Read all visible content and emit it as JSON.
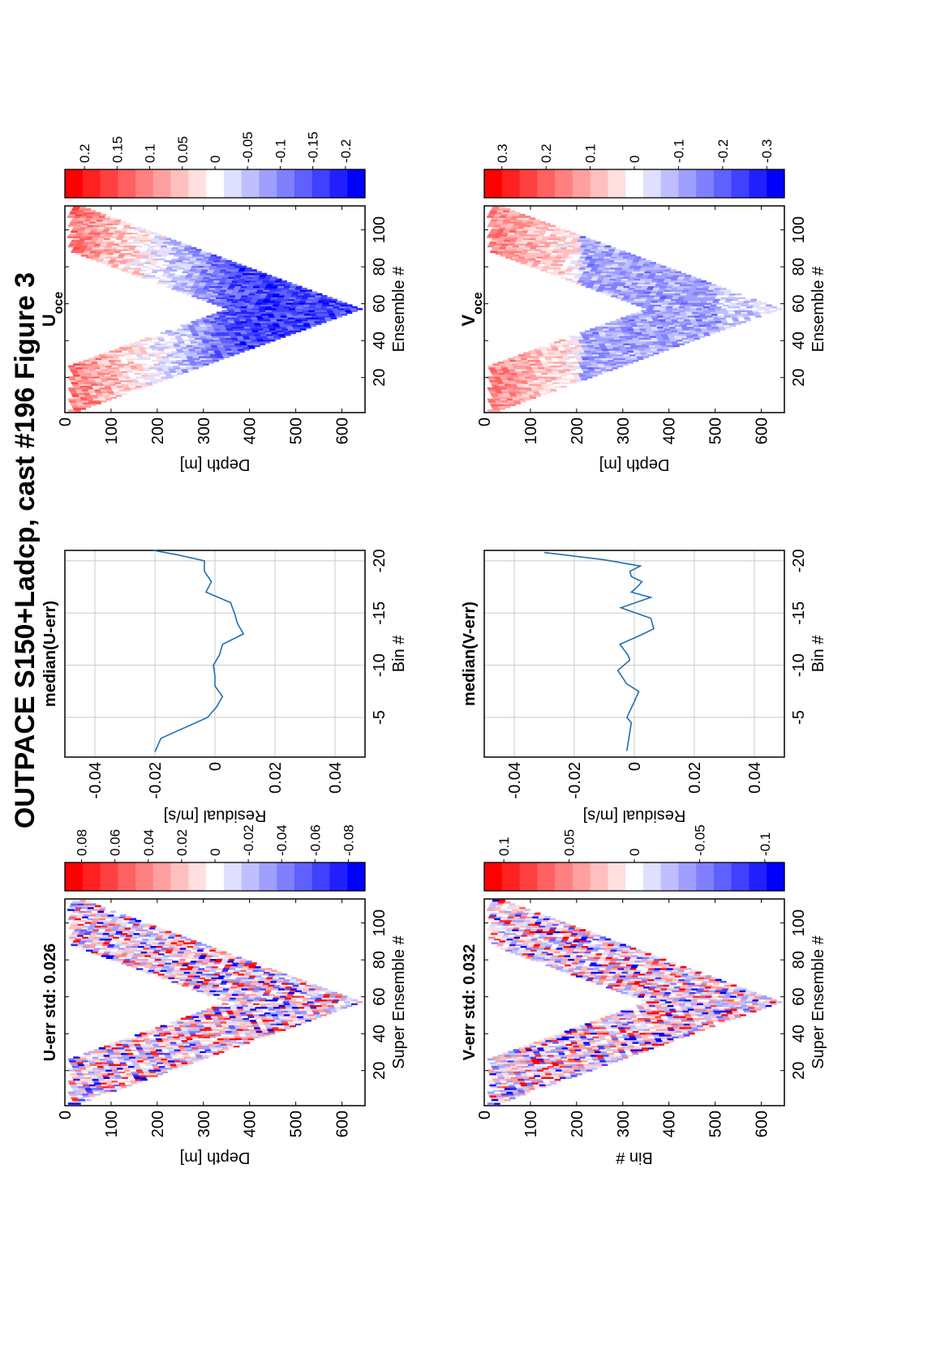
{
  "figure_title": "OUTPACE S150+Ladcp, cast #196  Figure 3",
  "chart_data": [
    {
      "type": "heatmap",
      "title": "U-err std: 0.026",
      "xlabel": "Super Ensemble #",
      "ylabel": "Depth [m]",
      "xlim": [
        1,
        113
      ],
      "ylim": [
        0,
        650
      ],
      "xticks": [
        20,
        40,
        60,
        80,
        100
      ],
      "yticks": [
        0,
        100,
        200,
        300,
        400,
        500,
        600
      ],
      "pattern": "v-shaped cast, depth max 630 m at ensemble 57, noisy red/blue residuals",
      "colorbar": {
        "ticks": [
          0.08,
          0.06,
          0.04,
          0.02,
          0,
          -0.02,
          -0.04,
          -0.06,
          -0.08
        ],
        "range": [
          -0.09,
          0.09
        ]
      }
    },
    {
      "type": "line",
      "title": "median(U-err)",
      "xlabel": "Residual [m/s]",
      "ylabel": "Bin #",
      "xlim": [
        -0.05,
        0.05
      ],
      "ylim": [
        -20,
        -1
      ],
      "xticks": [
        -0.04,
        -0.02,
        0,
        0.02,
        0.04
      ],
      "yticks": [
        -5,
        -10,
        -15,
        -20
      ],
      "grid": true,
      "series": [
        {
          "x": [
            -0.02,
            -0.018,
            -0.0025,
            0.0005,
            0.0025,
            0.0,
            0.0,
            -0.0005,
            0.0015,
            0.0025,
            0.0095,
            0.0075,
            0.0065,
            0.0052,
            -0.003,
            -0.0012,
            -0.0035,
            -0.0035,
            -0.0128,
            -0.0205
          ],
          "y": [
            -1.7,
            -3,
            -5,
            -6,
            -7,
            -8,
            -9,
            -10,
            -11,
            -12,
            -13,
            -14,
            -15,
            -16,
            -17,
            -18,
            -19,
            -20,
            -20.6,
            -21
          ]
        }
      ]
    },
    {
      "type": "heatmap",
      "title": "Uoce",
      "xlabel": "Ensemble #",
      "ylabel": "Depth [m]",
      "xlim": [
        1,
        113
      ],
      "ylim": [
        0,
        650
      ],
      "xticks": [
        20,
        40,
        60,
        80,
        100
      ],
      "yticks": [
        0,
        100,
        200,
        300,
        400,
        500,
        600
      ],
      "pattern": "v-shaped cast, red near surface, strong blue 350-550 m",
      "colorbar": {
        "ticks": [
          0.2,
          0.15,
          0.1,
          0.05,
          0,
          -0.05,
          -0.1,
          -0.15,
          -0.2
        ],
        "range": [
          -0.23,
          0.23
        ]
      }
    },
    {
      "type": "heatmap",
      "title": "V-err std: 0.032",
      "xlabel": "Super Ensemble #",
      "ylabel": "Bin #",
      "xlim": [
        1,
        113
      ],
      "ylim": [
        0,
        650
      ],
      "xticks": [
        20,
        40,
        60,
        80,
        100
      ],
      "yticks": [
        0,
        100,
        200,
        300,
        400,
        500,
        600
      ],
      "pattern": "v-shaped cast, noisy red/blue residuals",
      "colorbar": {
        "ticks": [
          0.1,
          0.05,
          0,
          -0.05,
          -0.1
        ],
        "range": [
          -0.115,
          0.115
        ]
      }
    },
    {
      "type": "line",
      "title": "median(V-err)",
      "xlabel": "Residual [m/s]",
      "ylabel": "Bin #",
      "xlim": [
        -0.05,
        0.05
      ],
      "ylim": [
        -20,
        -1
      ],
      "xticks": [
        -0.04,
        -0.02,
        0,
        0.02,
        0.04
      ],
      "yticks": [
        -5,
        -10,
        -15,
        -20
      ],
      "grid": true,
      "series": [
        {
          "x": [
            -0.03,
            -0.01,
            0.002,
            -0.0015,
            -0.001,
            0.0025,
            0.001,
            -0.001,
            0.0055,
            -0.0045,
            0.0055,
            0.0065,
            0.003,
            -0.0048,
            -0.0035,
            -0.0022,
            -0.0015,
            -0.0055,
            -0.0025,
            0.0015,
            0.0,
            -0.0025,
            -0.001,
            -0.0025
          ],
          "y": [
            -20.8,
            -20.1,
            -19.5,
            -19,
            -18.5,
            -18,
            -17.5,
            -17,
            -16.5,
            -15.5,
            -14.5,
            -13.5,
            -13,
            -12,
            -11.5,
            -11,
            -10.5,
            -9.5,
            -8.2,
            -7.5,
            -6.5,
            -5,
            -4.5,
            -1.8
          ]
        }
      ]
    },
    {
      "type": "heatmap",
      "title": "Voce",
      "xlabel": "Ensemble #",
      "ylabel": "Depth [m]",
      "xlim": [
        1,
        113
      ],
      "ylim": [
        0,
        650
      ],
      "xticks": [
        20,
        40,
        60,
        80,
        100
      ],
      "yticks": [
        0,
        100,
        200,
        300,
        400,
        500,
        600
      ],
      "pattern": "v-shaped cast, red near surface, light blue at depth",
      "colorbar": {
        "ticks": [
          0.3,
          0.2,
          0.1,
          0,
          -0.1,
          -0.2,
          -0.3
        ],
        "range": [
          -0.34,
          0.34
        ]
      }
    }
  ]
}
